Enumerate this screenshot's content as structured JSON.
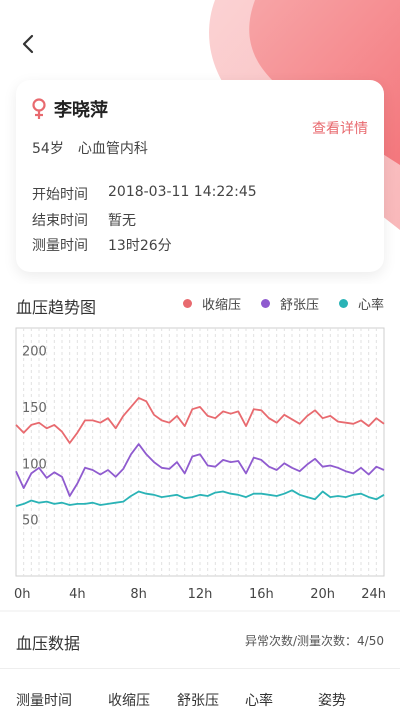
{
  "header": {
    "back_icon": "chevron-left-icon"
  },
  "patient": {
    "gender_icon": "female-icon",
    "name": "李晓萍",
    "age": "54岁",
    "department": "心血管内科",
    "detail_link": "查看详情",
    "start_label": "开始时间",
    "start_value": "2018-03-11 14:22:45",
    "end_label": "结束时间",
    "end_value": "暂无",
    "duration_label": "测量时间",
    "duration_value": "13时26分"
  },
  "colors": {
    "systolic": "#e86a6f",
    "diastolic": "#8f5bcf",
    "heart_rate": "#2ab3b6",
    "accent": "#e86a6f"
  },
  "chart_section": {
    "title": "血压趋势图",
    "legend": [
      "收缩压",
      "舒张压",
      "心率"
    ]
  },
  "chart_data": {
    "type": "line",
    "title": "血压趋势图",
    "xlabel": "",
    "ylabel": "",
    "xlim": [
      0,
      24
    ],
    "ylim": [
      0,
      220
    ],
    "x_ticks": [
      "0h",
      "4h",
      "8h",
      "12h",
      "16h",
      "20h",
      "24h"
    ],
    "y_ticks": [
      200,
      150,
      100,
      50
    ],
    "grid": true,
    "legend_position": "top-right",
    "x": [
      0,
      0.5,
      1,
      1.5,
      2,
      2.5,
      3,
      3.5,
      4,
      4.5,
      5,
      5.5,
      6,
      6.5,
      7,
      7.5,
      8,
      8.5,
      9,
      9.5,
      10,
      10.5,
      11,
      11.5,
      12,
      12.5,
      13,
      13.5,
      14,
      14.5,
      15,
      15.5,
      16,
      16.5,
      17,
      17.5,
      18,
      18.5,
      19,
      19.5,
      20,
      20.5,
      21,
      21.5,
      22,
      22.5,
      23,
      23.5,
      24
    ],
    "series": [
      {
        "name": "收缩压",
        "values": [
          134,
          127,
          134,
          136,
          131,
          134,
          128,
          118,
          127,
          138,
          138,
          136,
          140,
          131,
          142,
          150,
          158,
          155,
          143,
          138,
          136,
          142,
          133,
          148,
          150,
          142,
          140,
          146,
          144,
          146,
          133,
          148,
          147,
          140,
          136,
          143,
          139,
          135,
          142,
          147,
          140,
          142,
          137,
          136,
          135,
          138,
          133,
          140,
          135
        ]
      },
      {
        "name": "舒张压",
        "values": [
          93,
          78,
          91,
          96,
          87,
          92,
          88,
          71,
          82,
          96,
          94,
          90,
          94,
          88,
          95,
          108,
          117,
          108,
          101,
          96,
          95,
          101,
          91,
          106,
          108,
          98,
          97,
          103,
          101,
          102,
          91,
          105,
          103,
          97,
          94,
          100,
          96,
          93,
          99,
          104,
          97,
          98,
          96,
          93,
          91,
          96,
          90,
          97,
          94
        ]
      },
      {
        "name": "心率",
        "values": [
          62,
          64,
          67,
          65,
          66,
          64,
          65,
          63,
          64,
          64,
          65,
          63,
          64,
          65,
          66,
          71,
          75,
          73,
          72,
          70,
          71,
          72,
          69,
          70,
          72,
          71,
          74,
          75,
          73,
          72,
          70,
          73,
          73,
          72,
          71,
          73,
          76,
          72,
          70,
          68,
          75,
          70,
          71,
          70,
          72,
          73,
          70,
          68,
          72
        ]
      }
    ]
  },
  "data_section": {
    "title": "血压数据",
    "abnormal_text": "异常次数/测量次数：4/50",
    "columns": [
      "测量时间",
      "收缩压",
      "舒张压",
      "心率",
      "姿势"
    ]
  }
}
